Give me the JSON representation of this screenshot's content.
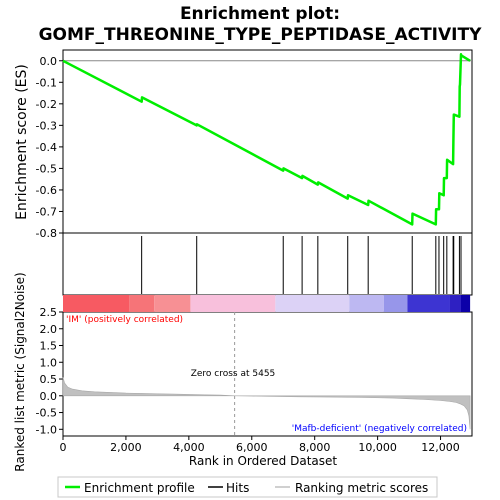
{
  "chart_data": {
    "type": "line",
    "title_line1": "Enrichment plot:",
    "title_line2": "GOMF_THREONINE_TYPE_PEPTIDASE_ACTIVITY",
    "es_ylabel": "Enrichment score (ES)",
    "rank_ylabel": "Ranked list metric (Signal2Noise)",
    "xlabel": "Rank in Ordered Dataset",
    "xlim": [
      0,
      13000
    ],
    "x_ticks": [
      0,
      2000,
      4000,
      6000,
      8000,
      10000,
      12000
    ],
    "x_tick_labels": [
      "0",
      "2,000",
      "4,000",
      "6,000",
      "8,000",
      "10,000",
      "12,000"
    ],
    "es_ylim": [
      -0.8,
      0.05
    ],
    "es_ticks": [
      0.0,
      -0.1,
      -0.2,
      -0.3,
      -0.4,
      -0.5,
      -0.6,
      -0.7,
      -0.8
    ],
    "es_tick_labels": [
      "0.0",
      "-0.1",
      "-0.2",
      "-0.3",
      "-0.4",
      "-0.5",
      "-0.6",
      "-0.7",
      "-0.8"
    ],
    "rank_ylim": [
      -1.2,
      2.5
    ],
    "rank_ticks": [
      2.5,
      2.0,
      1.5,
      1.0,
      0.5,
      0.0,
      -0.5,
      -1.0
    ],
    "rank_tick_labels": [
      "2.5",
      "2.0",
      "1.5",
      "1.0",
      "0.5",
      "0.0",
      "-0.5",
      "-1.0"
    ],
    "enrichment_profile": {
      "x": [
        0,
        2500,
        2510,
        4250,
        4260,
        7000,
        7010,
        7600,
        7610,
        8100,
        8110,
        9050,
        9060,
        9700,
        9710,
        11100,
        11110,
        11850,
        11860,
        11950,
        11960,
        12100,
        12110,
        12200,
        12210,
        12400,
        12410,
        12420,
        12600,
        12610,
        12620,
        12650,
        12660,
        12940
      ],
      "y": [
        0.0,
        -0.19,
        -0.17,
        -0.3,
        -0.295,
        -0.51,
        -0.5,
        -0.545,
        -0.535,
        -0.575,
        -0.565,
        -0.64,
        -0.625,
        -0.67,
        -0.65,
        -0.76,
        -0.71,
        -0.76,
        -0.69,
        -0.69,
        -0.615,
        -0.625,
        -0.545,
        -0.545,
        -0.46,
        -0.48,
        -0.37,
        -0.25,
        -0.26,
        -0.12,
        -0.11,
        0.03,
        0.025,
        0.0
      ]
    },
    "hits": [
      2500,
      4250,
      7000,
      7600,
      8100,
      9050,
      9700,
      11100,
      11850,
      11950,
      12100,
      12200,
      12400,
      12420,
      12600,
      12650
    ],
    "zero_cross": 5455,
    "zero_cross_label": "Zero cross at 5455",
    "pos_label": "'IM' (positively correlated)",
    "neg_label": "'Mafb-deficient' (negatively correlated)",
    "legend": {
      "profile": "Enrichment profile",
      "hits": "Hits",
      "metric": "Ranking metric scores"
    },
    "colors": {
      "profile": "#00ee00",
      "hits": "#000000",
      "metric": "#c0c0c0",
      "pos_text": "#ff0000",
      "neg_text": "#0000ff"
    },
    "heatmap_segments": [
      {
        "x0": 0,
        "x1": 2100,
        "color": "#f75a62"
      },
      {
        "x0": 2100,
        "x1": 2900,
        "color": "#f67478"
      },
      {
        "x0": 2900,
        "x1": 4050,
        "color": "#f79094"
      },
      {
        "x0": 4050,
        "x1": 6750,
        "color": "#f8c0dc"
      },
      {
        "x0": 6750,
        "x1": 9100,
        "color": "#dcd2f6"
      },
      {
        "x0": 9100,
        "x1": 10200,
        "color": "#bdb8f2"
      },
      {
        "x0": 10200,
        "x1": 10950,
        "color": "#9796ea"
      },
      {
        "x0": 10950,
        "x1": 12300,
        "color": "#3d34d2"
      },
      {
        "x0": 12300,
        "x1": 12650,
        "color": "#2e20c2"
      },
      {
        "x0": 12650,
        "x1": 12940,
        "color": "#0c00a8"
      }
    ],
    "ranked_metric": {
      "x": [
        0,
        50,
        150,
        300,
        600,
        1000,
        1500,
        2000,
        2500,
        3000,
        3500,
        4000,
        4500,
        5000,
        5455,
        6000,
        6750,
        7500,
        8500,
        9500,
        10500,
        11000,
        11500,
        12000,
        12300,
        12500,
        12650,
        12750,
        12850,
        12900,
        12940
      ],
      "y": [
        0.55,
        0.38,
        0.26,
        0.2,
        0.15,
        0.12,
        0.1,
        0.08,
        0.07,
        0.06,
        0.05,
        0.04,
        0.03,
        0.02,
        0.0,
        -0.01,
        -0.02,
        -0.03,
        -0.04,
        -0.05,
        -0.07,
        -0.09,
        -0.11,
        -0.14,
        -0.17,
        -0.2,
        -0.25,
        -0.3,
        -0.42,
        -0.6,
        -1.0
      ]
    }
  }
}
